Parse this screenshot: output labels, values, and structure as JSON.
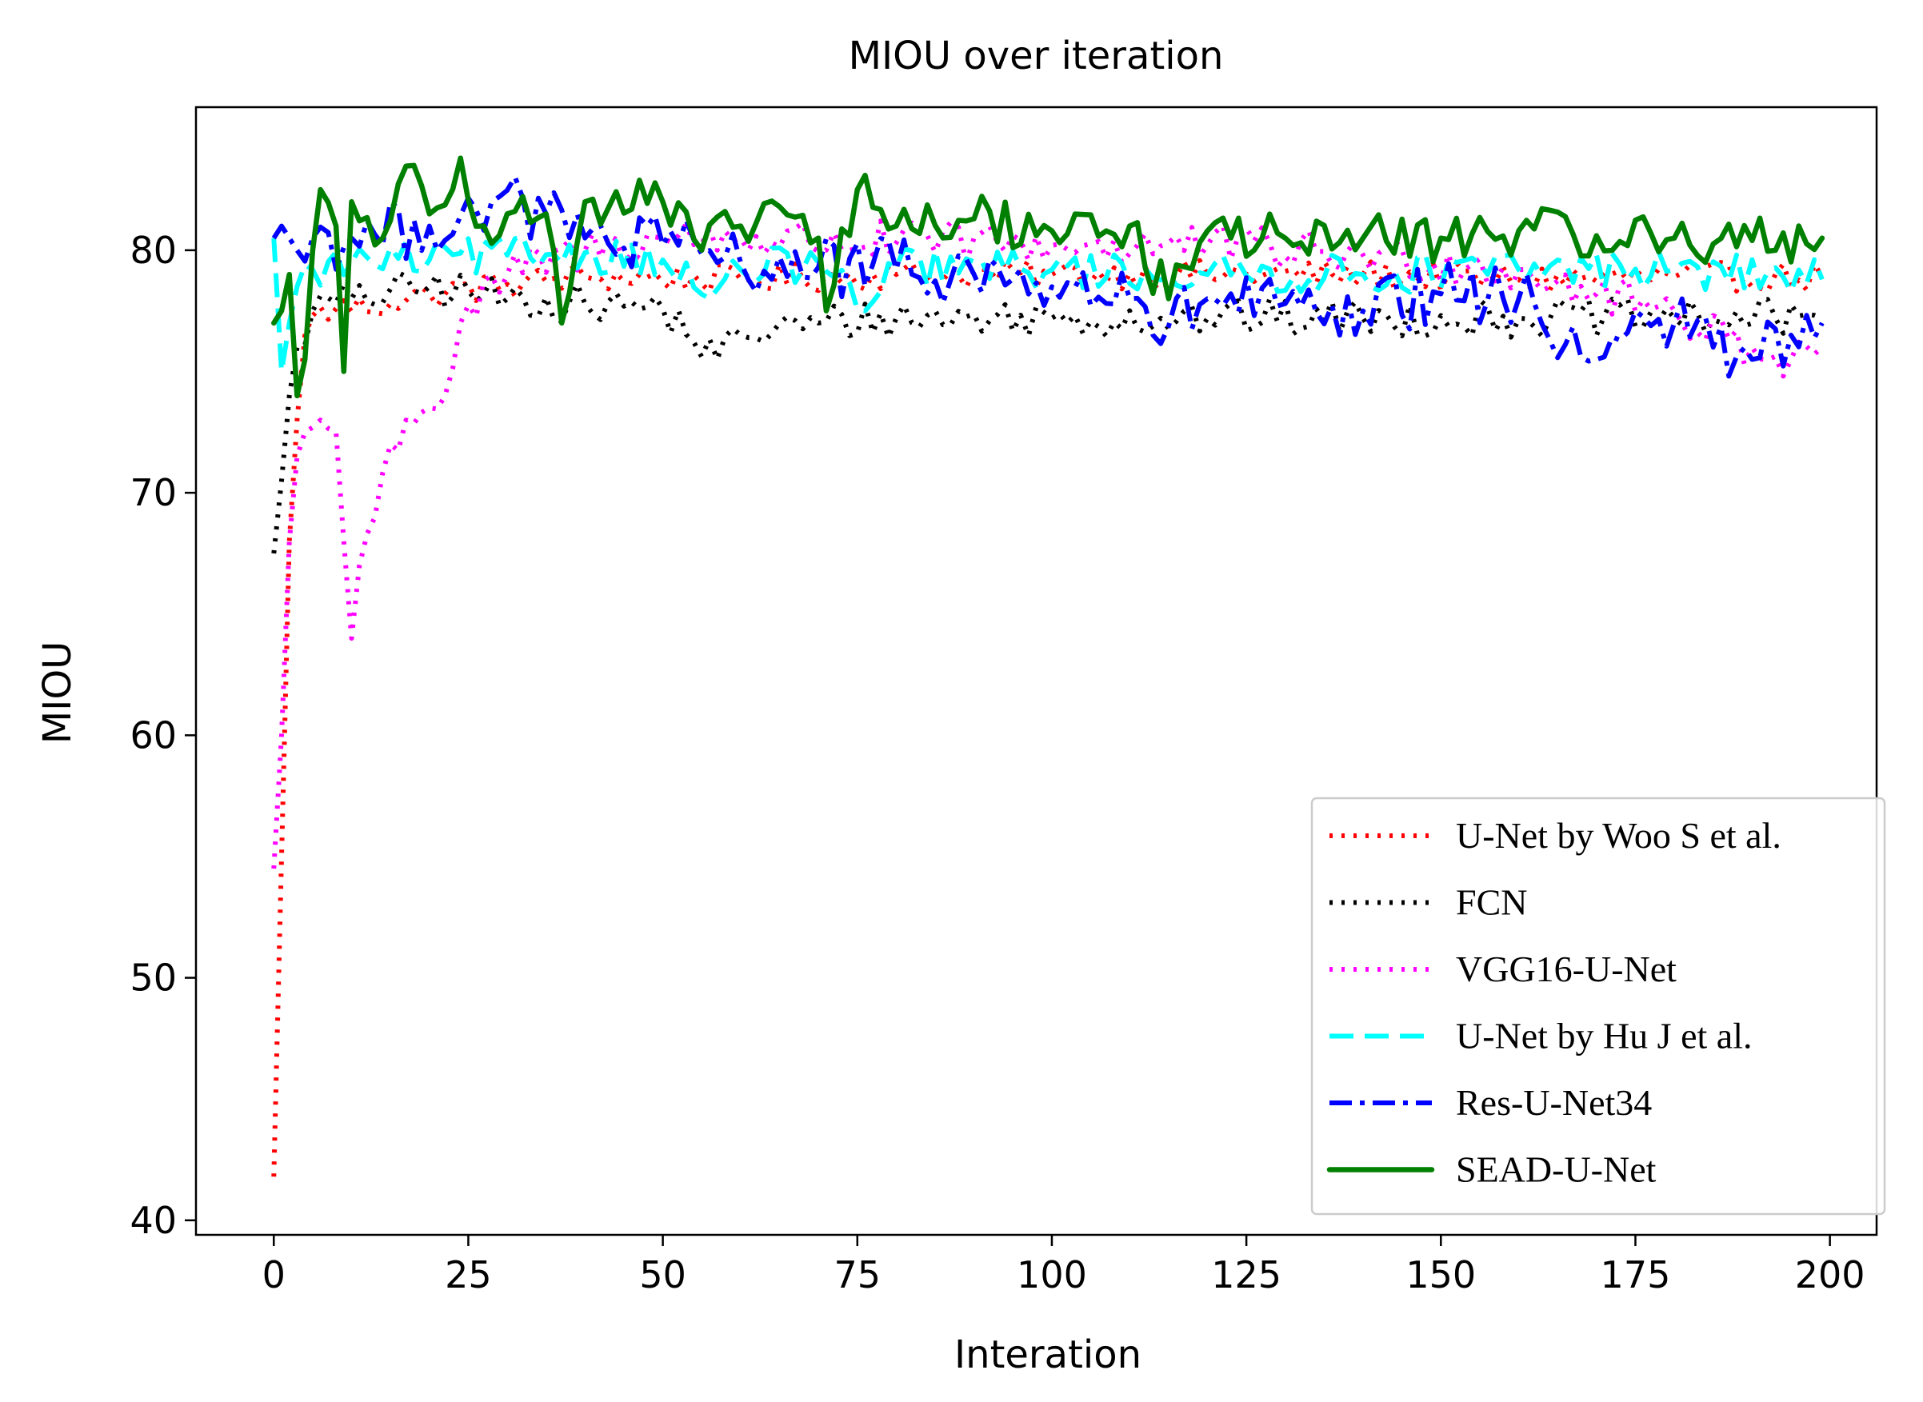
{
  "chart_data": {
    "type": "line",
    "title": "MIOU over iteration",
    "xlabel": "Interation",
    "ylabel": "MIOU",
    "xlim": [
      -10,
      206
    ],
    "ylim": [
      39.4,
      85.9
    ],
    "xticks": [
      0,
      25,
      50,
      75,
      100,
      125,
      150,
      175,
      200
    ],
    "yticks": [
      40,
      50,
      60,
      70,
      80
    ],
    "grid": false,
    "legend_position": "lower-right",
    "series": [
      {
        "name": "U-Net by Woo S et al.",
        "color": "#ff0000",
        "style": "dotted",
        "anchors": [
          [
            0,
            41.8
          ],
          [
            1,
            55
          ],
          [
            2,
            68
          ],
          [
            3,
            73
          ],
          [
            4,
            76.5
          ],
          [
            5,
            77.3
          ],
          [
            8,
            77.6
          ],
          [
            15,
            77.8
          ],
          [
            20,
            78.2
          ],
          [
            30,
            78.6
          ],
          [
            40,
            78.9
          ],
          [
            60,
            78.8
          ],
          [
            80,
            79.0
          ],
          [
            100,
            79.0
          ],
          [
            120,
            79.0
          ],
          [
            140,
            79.0
          ],
          [
            160,
            78.8
          ],
          [
            180,
            78.9
          ],
          [
            199,
            78.9
          ]
        ],
        "amp": 0.6
      },
      {
        "name": "FCN",
        "color": "#000000",
        "style": "dotted",
        "anchors": [
          [
            0,
            67.5
          ],
          [
            1,
            70.5
          ],
          [
            2,
            74
          ],
          [
            3,
            76
          ],
          [
            5,
            77.5
          ],
          [
            10,
            78
          ],
          [
            20,
            78.5
          ],
          [
            30,
            78
          ],
          [
            40,
            77.8
          ],
          [
            50,
            77.6
          ],
          [
            57,
            75.5
          ],
          [
            60,
            76.5
          ],
          [
            70,
            77
          ],
          [
            80,
            77.2
          ],
          [
            100,
            77.2
          ],
          [
            120,
            77.2
          ],
          [
            140,
            77.2
          ],
          [
            160,
            77.2
          ],
          [
            180,
            77.2
          ],
          [
            199,
            77.2
          ]
        ],
        "amp": 0.8
      },
      {
        "name": "VGG16-U-Net",
        "color": "#ff00ff",
        "style": "dotted",
        "anchors": [
          [
            0,
            54.5
          ],
          [
            1,
            60
          ],
          [
            2,
            68
          ],
          [
            3,
            71.5
          ],
          [
            4,
            72.5
          ],
          [
            6,
            73
          ],
          [
            8,
            72.5
          ],
          [
            9,
            68
          ],
          [
            10,
            64
          ],
          [
            11,
            67
          ],
          [
            13,
            69
          ],
          [
            15,
            72
          ],
          [
            17,
            73
          ],
          [
            20,
            73.5
          ],
          [
            22,
            74
          ],
          [
            24,
            77
          ],
          [
            30,
            79
          ],
          [
            40,
            80
          ],
          [
            50,
            80.5
          ],
          [
            60,
            80.5
          ],
          [
            80,
            80.3
          ],
          [
            100,
            80.2
          ],
          [
            120,
            80.2
          ],
          [
            140,
            79.8
          ],
          [
            160,
            79.2
          ],
          [
            170,
            78.2
          ],
          [
            180,
            77.5
          ],
          [
            190,
            76
          ],
          [
            195,
            75.5
          ],
          [
            199,
            76
          ]
        ],
        "amp": 0.9
      },
      {
        "name": "U-Net by Hu J et al.",
        "color": "#00ffff",
        "style": "dashed",
        "anchors": [
          [
            0,
            80.5
          ],
          [
            1,
            75
          ],
          [
            2,
            77
          ],
          [
            3,
            78.5
          ],
          [
            5,
            79.2
          ],
          [
            10,
            79.5
          ],
          [
            20,
            79.6
          ],
          [
            30,
            79.8
          ],
          [
            40,
            79.9
          ],
          [
            50,
            79.6
          ],
          [
            56,
            78
          ],
          [
            60,
            79.2
          ],
          [
            70,
            79.5
          ],
          [
            76,
            77.5
          ],
          [
            80,
            79.3
          ],
          [
            100,
            79.2
          ],
          [
            120,
            79.0
          ],
          [
            140,
            79.0
          ],
          [
            160,
            79.2
          ],
          [
            180,
            79.2
          ],
          [
            199,
            78.8
          ]
        ],
        "amp": 0.8
      },
      {
        "name": "Res-U-Net34",
        "color": "#0000ff",
        "style": "dashdot",
        "anchors": [
          [
            0,
            80.5
          ],
          [
            1,
            81
          ],
          [
            3,
            80
          ],
          [
            5,
            80.5
          ],
          [
            10,
            80.5
          ],
          [
            20,
            81
          ],
          [
            28,
            82
          ],
          [
            35,
            81.5
          ],
          [
            40,
            80.5
          ],
          [
            50,
            80.2
          ],
          [
            60,
            79.5
          ],
          [
            70,
            79.3
          ],
          [
            80,
            79.2
          ],
          [
            90,
            79
          ],
          [
            100,
            78.5
          ],
          [
            110,
            78
          ],
          [
            113,
            76.5
          ],
          [
            120,
            78
          ],
          [
            130,
            77.8
          ],
          [
            137,
            76.5
          ],
          [
            140,
            77.5
          ],
          [
            150,
            78.2
          ],
          [
            160,
            78
          ],
          [
            170,
            75.5
          ],
          [
            175,
            77.5
          ],
          [
            180,
            77
          ],
          [
            185,
            76
          ],
          [
            190,
            75.5
          ],
          [
            195,
            76.5
          ],
          [
            199,
            77
          ]
        ],
        "amp": 1.3
      },
      {
        "name": "SEAD-U-Net",
        "color": "#008000",
        "style": "solid",
        "anchors": [
          [
            0,
            77
          ],
          [
            1,
            77.5
          ],
          [
            2,
            79
          ],
          [
            3,
            74
          ],
          [
            4,
            75.5
          ],
          [
            5,
            80
          ],
          [
            6,
            82.5
          ],
          [
            8,
            81
          ],
          [
            9,
            75
          ],
          [
            10,
            82
          ],
          [
            14,
            80.5
          ],
          [
            18,
            83.5
          ],
          [
            20,
            81.5
          ],
          [
            24,
            83.8
          ],
          [
            27,
            81
          ],
          [
            30,
            81.5
          ],
          [
            35,
            81.5
          ],
          [
            37,
            77
          ],
          [
            40,
            82
          ],
          [
            50,
            82
          ],
          [
            55,
            80
          ],
          [
            60,
            81
          ],
          [
            65,
            81.8
          ],
          [
            70,
            80.5
          ],
          [
            71,
            77.5
          ],
          [
            75,
            82.5
          ],
          [
            80,
            81
          ],
          [
            90,
            81.3
          ],
          [
            100,
            80.8
          ],
          [
            110,
            81
          ],
          [
            115,
            78
          ],
          [
            120,
            80.8
          ],
          [
            130,
            80.5
          ],
          [
            140,
            80.5
          ],
          [
            150,
            80.5
          ],
          [
            160,
            80.8
          ],
          [
            170,
            80.6
          ],
          [
            180,
            80.5
          ],
          [
            190,
            80.4
          ],
          [
            199,
            80.5
          ]
        ],
        "amp": 1.0
      }
    ]
  }
}
